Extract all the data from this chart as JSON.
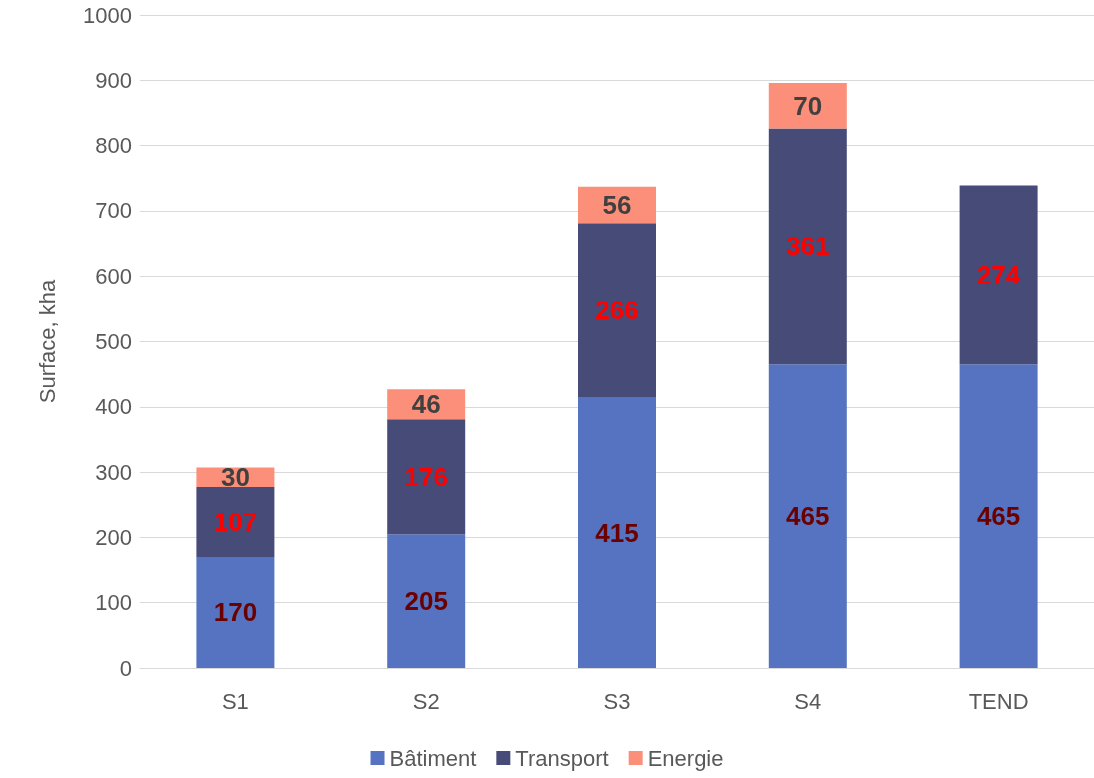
{
  "chart_data": {
    "type": "bar",
    "stacked": true,
    "ylabel": "Surface, kha",
    "categories": [
      "S1",
      "S2",
      "S3",
      "S4",
      "TEND"
    ],
    "series": [
      {
        "name": "Bâtiment",
        "color": "#5673c1",
        "values": [
          170,
          205,
          415,
          465,
          465
        ]
      },
      {
        "name": "Transport",
        "color": "#474b78",
        "values": [
          107,
          176,
          266,
          361,
          274
        ]
      },
      {
        "name": "Energie",
        "color": "#fb8f7a",
        "values": [
          30,
          46,
          56,
          70,
          null
        ]
      }
    ],
    "ylim": [
      0,
      1000
    ],
    "yticks": [
      0,
      100,
      200,
      300,
      400,
      500,
      600,
      700,
      800,
      900,
      1000
    ],
    "grid": "y",
    "legend": "bottom",
    "data_labels": true
  }
}
